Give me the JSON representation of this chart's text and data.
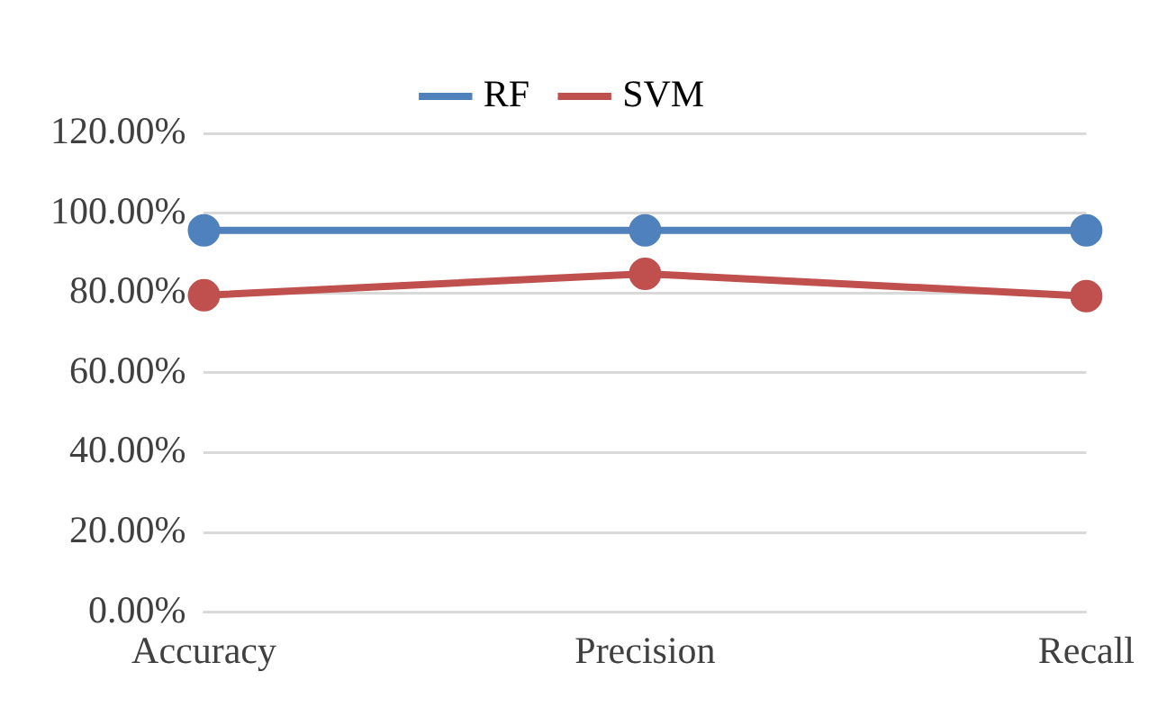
{
  "chart_data": {
    "type": "line",
    "categories": [
      "Accuracy",
      "Precision",
      "Recall"
    ],
    "series": [
      {
        "name": "RF",
        "color": "#4f81bd",
        "values": [
          95.7,
          95.7,
          95.7
        ]
      },
      {
        "name": "SVM",
        "color": "#c0504d",
        "values": [
          79.4,
          84.8,
          79.2
        ]
      }
    ],
    "ylim": [
      0,
      120
    ],
    "yticks": [
      {
        "value": 0,
        "label": "0.00%"
      },
      {
        "value": 20,
        "label": "20.00%"
      },
      {
        "value": 40,
        "label": "40.00%"
      },
      {
        "value": 60,
        "label": "60.00%"
      },
      {
        "value": 80,
        "label": "80.00%"
      },
      {
        "value": 100,
        "label": "100.00%"
      },
      {
        "value": 120,
        "label": "120.00%"
      }
    ],
    "grid": "y",
    "legend": "top",
    "marker": "circle",
    "line_style": "solid"
  }
}
